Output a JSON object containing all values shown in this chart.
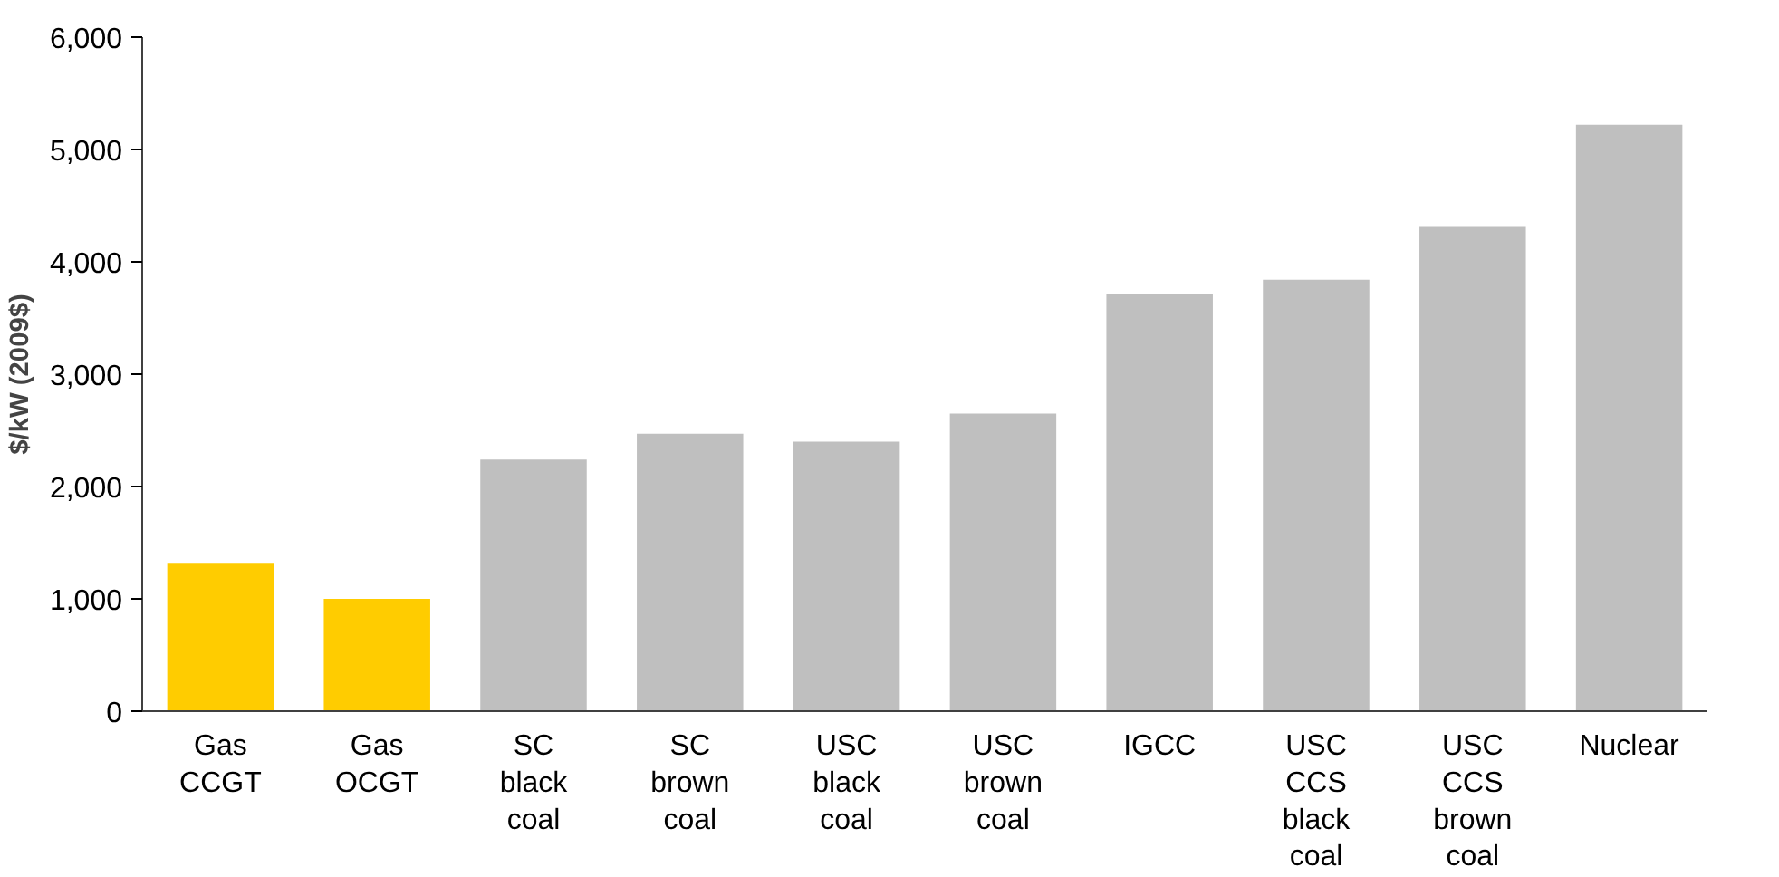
{
  "chart_data": {
    "type": "bar",
    "ylabel": "$/kW (2009$)",
    "categories": [
      "Gas CCGT",
      "Gas OCGT",
      "SC black coal",
      "SC brown coal",
      "USC black coal",
      "USC brown coal",
      "IGCC",
      "USC CCS black coal",
      "USC CCS brown coal",
      "Nuclear"
    ],
    "values": [
      1320,
      1000,
      2240,
      2470,
      2400,
      2650,
      3710,
      3840,
      4310,
      5220
    ],
    "colors": [
      "#ffcc00",
      "#ffcc00",
      "#bfbfbf",
      "#bfbfbf",
      "#bfbfbf",
      "#bfbfbf",
      "#bfbfbf",
      "#bfbfbf",
      "#bfbfbf",
      "#bfbfbf"
    ],
    "ylim": [
      0,
      6000
    ],
    "yticks": [
      {
        "value": 0,
        "label": "0"
      },
      {
        "value": 1000,
        "label": "1,000"
      },
      {
        "value": 2000,
        "label": "2,000"
      },
      {
        "value": 3000,
        "label": "3,000"
      },
      {
        "value": 4000,
        "label": "4,000"
      },
      {
        "value": 5000,
        "label": "5,000"
      },
      {
        "value": 6000,
        "label": "6,000"
      }
    ],
    "grid": false
  }
}
